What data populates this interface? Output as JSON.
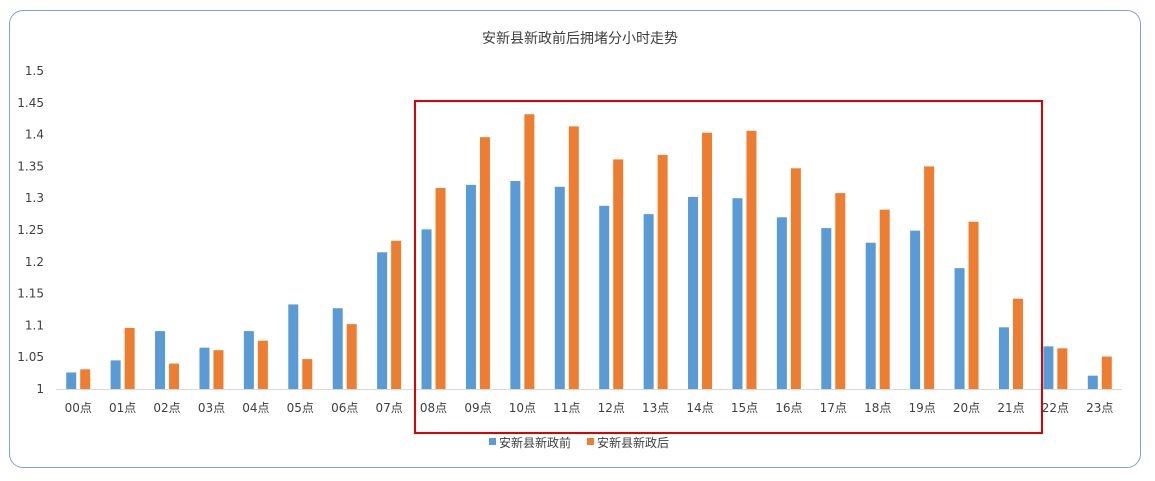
{
  "chart_data": {
    "type": "bar",
    "title": "安新县新政前后拥堵分小时走势",
    "categories": [
      "00点",
      "01点",
      "02点",
      "03点",
      "04点",
      "05点",
      "06点",
      "07点",
      "08点",
      "09点",
      "10点",
      "11点",
      "12点",
      "13点",
      "14点",
      "15点",
      "16点",
      "17点",
      "18点",
      "19点",
      "20点",
      "21点",
      "22点",
      "23点"
    ],
    "series": [
      {
        "name": "安新县新政前",
        "color": "#5b9bd5",
        "values": [
          1.026,
          1.045,
          1.091,
          1.065,
          1.091,
          1.133,
          1.127,
          1.215,
          1.251,
          1.321,
          1.327,
          1.318,
          1.288,
          1.275,
          1.302,
          1.3,
          1.27,
          1.253,
          1.23,
          1.249,
          1.19,
          1.097,
          1.067,
          1.021
        ]
      },
      {
        "name": "安新县新政后",
        "color": "#ed7d31",
        "values": [
          1.031,
          1.096,
          1.04,
          1.061,
          1.076,
          1.047,
          1.102,
          1.233,
          1.316,
          1.396,
          1.432,
          1.413,
          1.361,
          1.368,
          1.403,
          1.406,
          1.347,
          1.308,
          1.282,
          1.35,
          1.263,
          1.142,
          1.064,
          1.051
        ]
      }
    ],
    "ylim": [
      1,
      1.5
    ],
    "yticks": [
      "1",
      "1.05",
      "1.1",
      "1.15",
      "1.2",
      "1.25",
      "1.3",
      "1.35",
      "1.4",
      "1.45",
      "1.5"
    ],
    "grid": false,
    "legend": "bottom",
    "annotation": {
      "type": "highlight-box",
      "from": "08点",
      "to": "21点",
      "color": "#e00000"
    }
  }
}
